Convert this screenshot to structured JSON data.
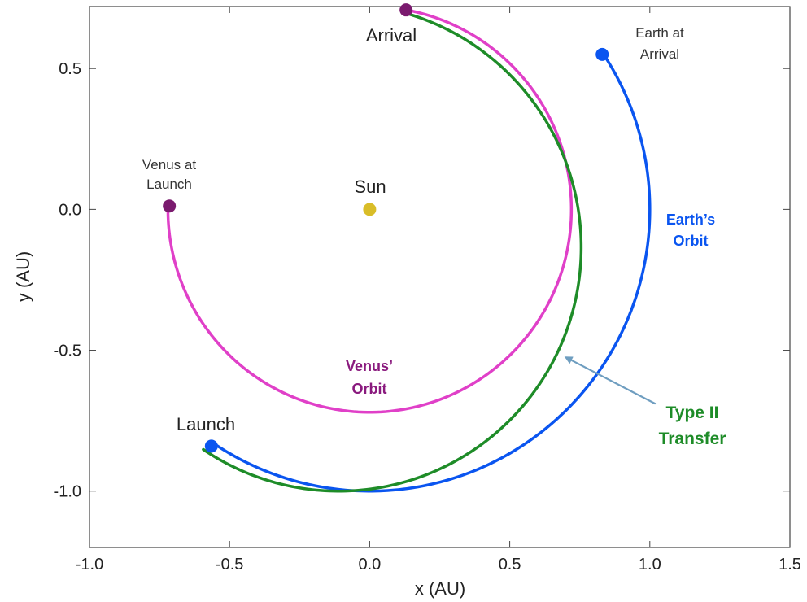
{
  "chart_data": {
    "type": "line",
    "xlabel": "x (AU)",
    "ylabel": "y (AU)",
    "xlim": [
      -1.0,
      1.5
    ],
    "ylim": [
      -1.2,
      0.72
    ],
    "x_ticks": [
      -1.0,
      -0.5,
      0.0,
      0.5,
      1.0,
      1.5
    ],
    "x_tick_labels": [
      "-1.0",
      "-0.5",
      "0.0",
      "0.5",
      "1.0",
      "1.5"
    ],
    "y_ticks": [
      -1.0,
      -0.5,
      0.0,
      0.5
    ],
    "y_tick_labels": [
      "-1.0",
      "-0.5",
      "0.0",
      "0.5"
    ],
    "grid": false,
    "series": [
      {
        "name": "Venus' Orbit",
        "color": "#e040c8",
        "kind": "ellipse_arc",
        "center": [
          0.0,
          0.0
        ],
        "a": 0.72,
        "b": 0.72,
        "start_deg": 178,
        "end_deg": 439
      },
      {
        "name": "Earth's Orbit",
        "color": "#0a55f0",
        "kind": "ellipse_arc",
        "center": [
          0.0,
          0.0
        ],
        "a": 1.0,
        "b": 1.0,
        "start_deg": 236,
        "end_deg": 393
      },
      {
        "name": "Type II Transfer",
        "color": "#1e8c28",
        "kind": "ellipse_arc",
        "center": [
          -0.11,
          -0.135
        ],
        "a": 0.865,
        "b": 0.865,
        "start_deg": 236,
        "end_deg": 434
      }
    ],
    "points": [
      {
        "id": "sun",
        "label": "Sun",
        "x": 0.0,
        "y": 0.0,
        "color": "#d9bd28"
      },
      {
        "id": "venus-at-launch",
        "label": "Venus at Launch",
        "x": -0.715,
        "y": 0.012,
        "color": "#7a1a6e"
      },
      {
        "id": "arrival",
        "label": "Arrival",
        "x": 0.13,
        "y": 0.708,
        "color": "#7a1a6e"
      },
      {
        "id": "launch",
        "label": "Launch",
        "x": -0.565,
        "y": -0.84,
        "color": "#0a55f0"
      },
      {
        "id": "earth-at-arrival",
        "label": "Earth at Arrival",
        "x": 0.83,
        "y": 0.55,
        "color": "#0a55f0"
      }
    ],
    "annotations": [
      {
        "id": "sun",
        "lines": [
          "Sun"
        ]
      },
      {
        "id": "venus-at-launch",
        "lines": [
          "Venus at",
          "Launch"
        ]
      },
      {
        "id": "arrival",
        "lines": [
          "Arrival"
        ]
      },
      {
        "id": "launch",
        "lines": [
          "Launch"
        ]
      },
      {
        "id": "earth-at-arrival",
        "lines": [
          "Earth at",
          "Arrival"
        ]
      },
      {
        "id": "earths-orbit",
        "lines": [
          "Earth’s",
          "Orbit"
        ],
        "color": "#0a55f0"
      },
      {
        "id": "venus-orbit",
        "lines": [
          "Venus’",
          "Orbit"
        ],
        "color": "#8a1a7e"
      },
      {
        "id": "type-ii-transfer",
        "lines": [
          "Type II",
          "Transfer"
        ],
        "color": "#1e8c28"
      }
    ],
    "arrow": {
      "color": "#6f9ec0",
      "from": [
        1.02,
        -0.69
      ],
      "to": [
        0.7,
        -0.525
      ]
    }
  }
}
